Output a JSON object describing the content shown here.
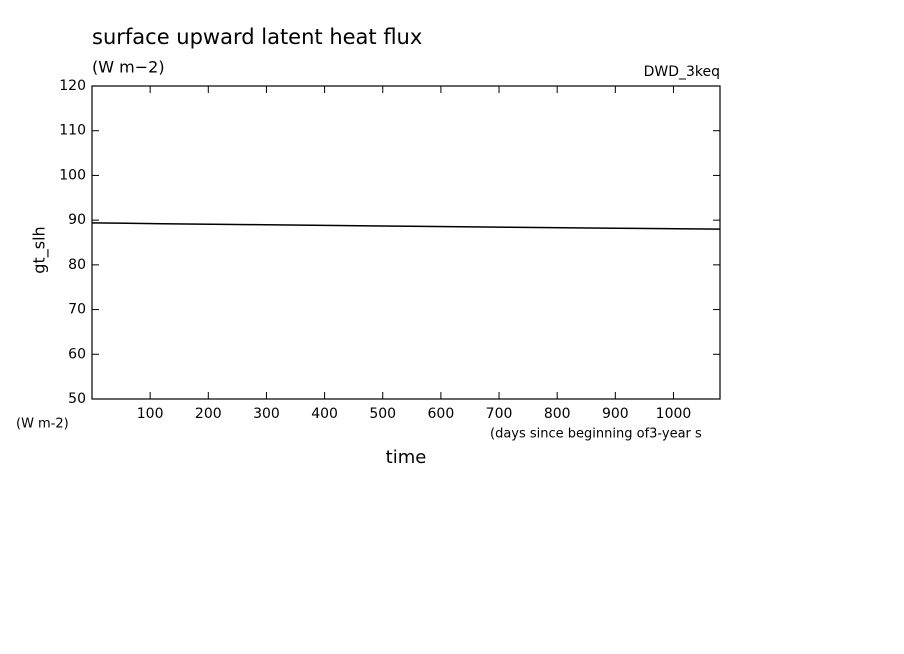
{
  "chart_data": {
    "type": "line",
    "title": "surface upward latent heat flux",
    "subtitle": "(W m−2)",
    "annotation": "DWD_3keq",
    "ylabel": "gt_slh",
    "y_unit": "(W m-2)",
    "xlabel": "time",
    "x_unit": "(days since beginning of3-year s",
    "x": [
      0,
      120,
      270,
      420,
      570,
      720,
      900,
      1080
    ],
    "values": [
      89.4,
      89.2,
      89.0,
      88.8,
      88.6,
      88.4,
      88.2,
      88.0
    ],
    "color": "#000000",
    "xlim": [
      0,
      1080
    ],
    "xticks": [
      100,
      200,
      300,
      400,
      500,
      600,
      700,
      800,
      900,
      1000
    ],
    "ylim": [
      50,
      120
    ],
    "yticks": [
      50,
      60,
      70,
      80,
      90,
      100,
      110,
      120
    ]
  }
}
